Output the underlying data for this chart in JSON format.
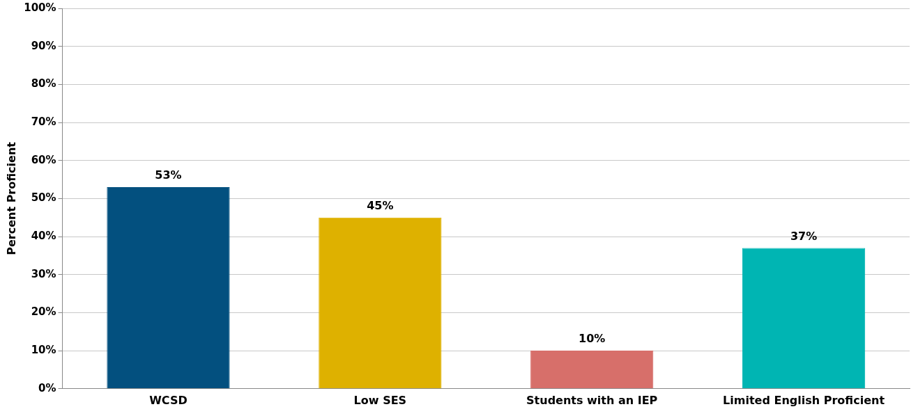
{
  "chart_data": {
    "type": "bar",
    "ylabel": "Percent Proficient",
    "categories": [
      "WCSD",
      "Low SES",
      "Students with an IEP",
      "Limited English Proficient"
    ],
    "values": [
      53,
      45,
      10,
      37
    ],
    "colors": [
      "#03507f",
      "#deb100",
      "#d76f6a",
      "#00b5b3"
    ],
    "value_labels": [
      "53%",
      "45%",
      "10%",
      "37%"
    ],
    "ylim": [
      0,
      100
    ],
    "yticks": [
      {
        "value": 0,
        "label": "0%"
      },
      {
        "value": 10,
        "label": "10%"
      },
      {
        "value": 20,
        "label": "20%"
      },
      {
        "value": 30,
        "label": "30%"
      },
      {
        "value": 40,
        "label": "40%"
      },
      {
        "value": 50,
        "label": "50%"
      },
      {
        "value": 60,
        "label": "60%"
      },
      {
        "value": 70,
        "label": "70%"
      },
      {
        "value": 80,
        "label": "80%"
      },
      {
        "value": 90,
        "label": "90%"
      },
      {
        "value": 100,
        "label": "100%"
      }
    ],
    "grid": "y",
    "legend": false
  }
}
